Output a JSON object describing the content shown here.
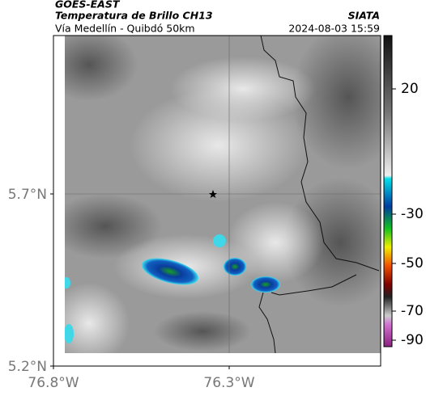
{
  "header": {
    "source": "GOES-EAST",
    "title": "Temperatura de Brillo CH13",
    "organization": "SIATA",
    "subtitle": "Vía Medellín - Quibdó 50km",
    "timestamp": "2024-08-03 15:59"
  },
  "axes": {
    "latitudes": [
      "5.7°N",
      "5.2°N"
    ],
    "longitudes": [
      "76.8°W",
      "76.3°W"
    ]
  },
  "colorbar": {
    "ticks": [
      20,
      -30,
      -50,
      -70,
      -90
    ]
  }
}
